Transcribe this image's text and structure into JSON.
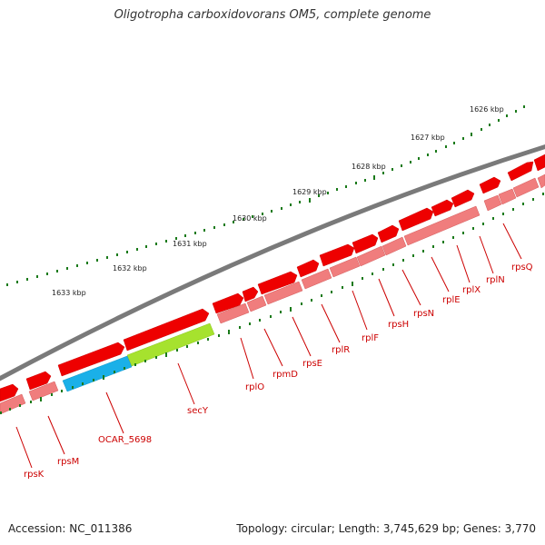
{
  "title": "Oligotropha carboxidovorans OM5, complete genome",
  "footer": {
    "accession": "Accession: NC_011386",
    "summary": "Topology: circular; Length: 3,745,629 bp; Genes: 3,770"
  },
  "scale_labels": [
    "1626 kbp",
    "1627 kbp",
    "1628 kbp",
    "1629 kbp",
    "1630 kbp",
    "1631 kbp",
    "1632 kbp",
    "1633 kbp"
  ],
  "gene_labels": [
    "rpsQ",
    "rplN",
    "rplX",
    "rplE",
    "rpsN",
    "rpsH",
    "rplF",
    "rplR",
    "rpsE",
    "rpmD",
    "rplO",
    "secY",
    "OCAR_5698",
    "rpsM",
    "rpsK"
  ],
  "colors": {
    "backbone": "#7a7a7a",
    "gene": "#ee0000",
    "cds": "#f07d7d",
    "secY": "#a6e22e",
    "ocar": "#1ab0e8",
    "label": "#cc0000",
    "ticks": "#1a7a1a"
  }
}
